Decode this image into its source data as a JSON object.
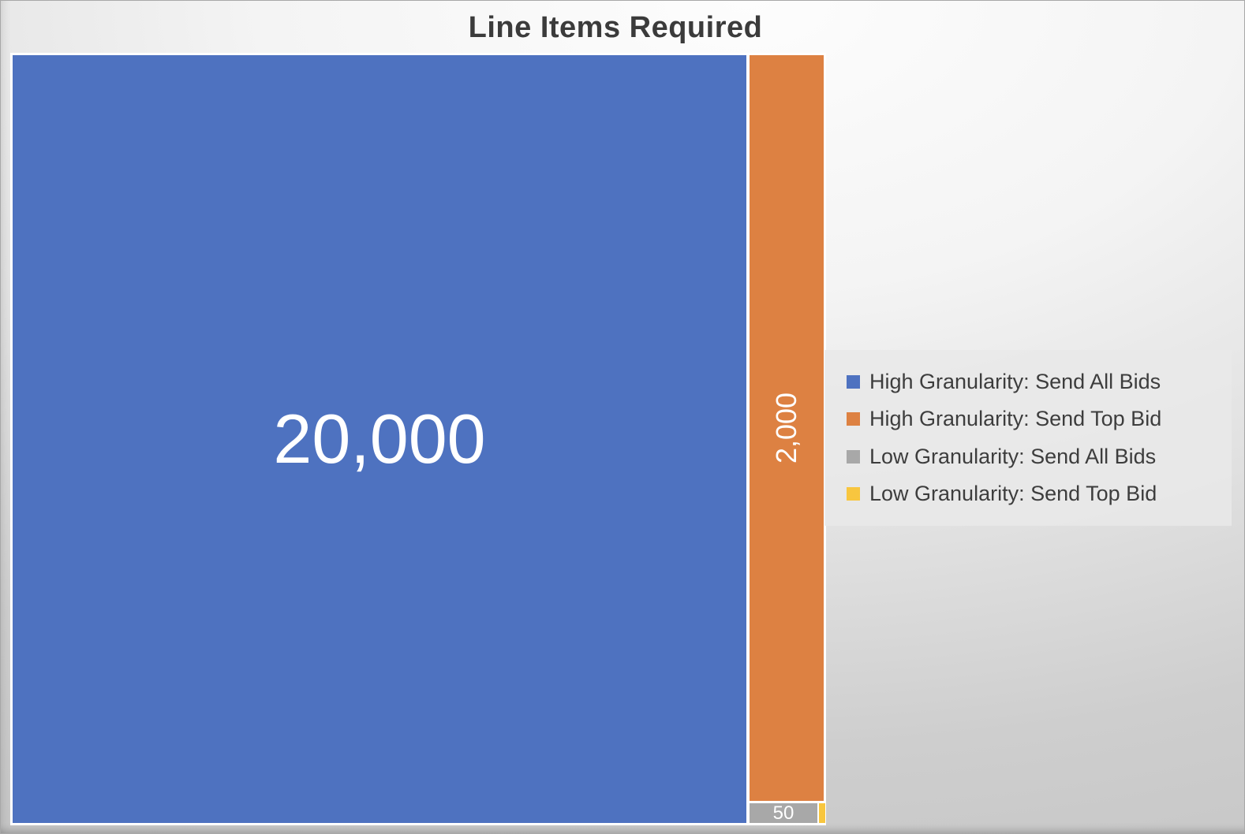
{
  "chart_data": {
    "type": "treemap",
    "title": "Line Items Required",
    "legend_position": "right",
    "grid": false,
    "series": [
      {
        "name": "High Granularity: Send All Bids",
        "value": 20000,
        "label": "20,000",
        "color": "#4e72c0"
      },
      {
        "name": "High Granularity: Send Top Bid",
        "value": 2000,
        "label": "2,000",
        "color": "#dd8142"
      },
      {
        "name": "Low Granularity: Send All Bids",
        "value": 50,
        "label": "50",
        "color": "#a8a8a8"
      },
      {
        "name": "Low Granularity: Send Top Bid",
        "value": 5,
        "label": "",
        "color": "#f8c63f"
      }
    ],
    "title_color": "#3b3b3b",
    "data_label_color": "#ffffff"
  }
}
